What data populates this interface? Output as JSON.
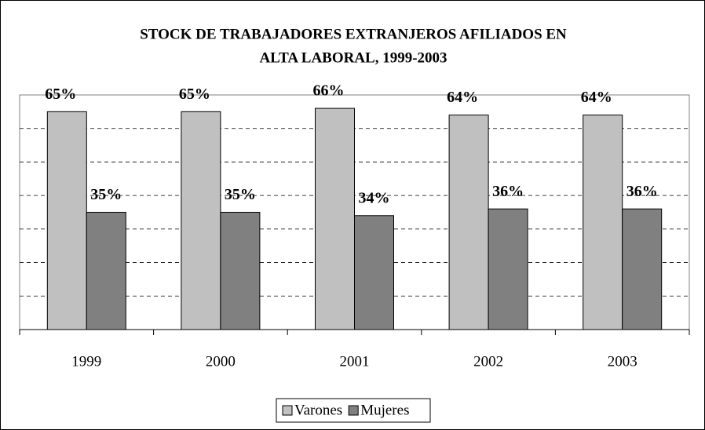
{
  "chart_data": {
    "type": "bar",
    "title": [
      "STOCK DE TRABAJADORES EXTRANJEROS AFILIADOS EN",
      "ALTA LABORAL, 1999-2003"
    ],
    "categories": [
      "1999",
      "2000",
      "2001",
      "2002",
      "2003"
    ],
    "series": [
      {
        "name": "Varones",
        "color": "#c0c0c0",
        "values": [
          65,
          65,
          66,
          64,
          64
        ],
        "value_labels": [
          "65%",
          "65%",
          "66%",
          "64%",
          "64%"
        ]
      },
      {
        "name": "Mujeres",
        "color": "#808080",
        "values": [
          35,
          35,
          34,
          36,
          36
        ],
        "value_labels": [
          "35%",
          "35%",
          "34%",
          "36%",
          "36%"
        ]
      }
    ],
    "ylim": [
      0,
      70
    ],
    "yticks": [
      0,
      10,
      20,
      30,
      40,
      50,
      60,
      70
    ],
    "grid": true,
    "legend": "bottom"
  }
}
